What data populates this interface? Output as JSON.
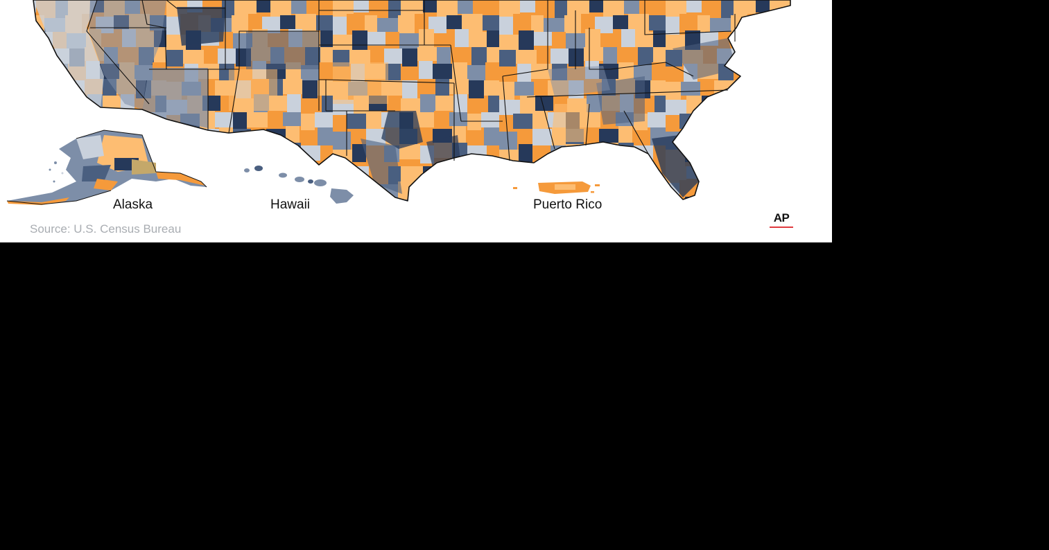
{
  "map": {
    "regions": {
      "alaska": "Alaska",
      "hawaii": "Hawaii",
      "puerto_rico": "Puerto Rico"
    },
    "source": "Source: U.S. Census Bureau",
    "credit_logo_text": "AP",
    "colors": {
      "orange_dark": "#f59a3b",
      "orange_light": "#fdbd72",
      "blue_darkest": "#26395a",
      "blue_dark": "#4a5f80",
      "blue_mid": "#7d8ea8",
      "blue_light": "#c9d1dc",
      "border": "#111111",
      "background": "#ffffff",
      "page_background": "#000000",
      "ap_accent": "#e03a3e"
    }
  }
}
